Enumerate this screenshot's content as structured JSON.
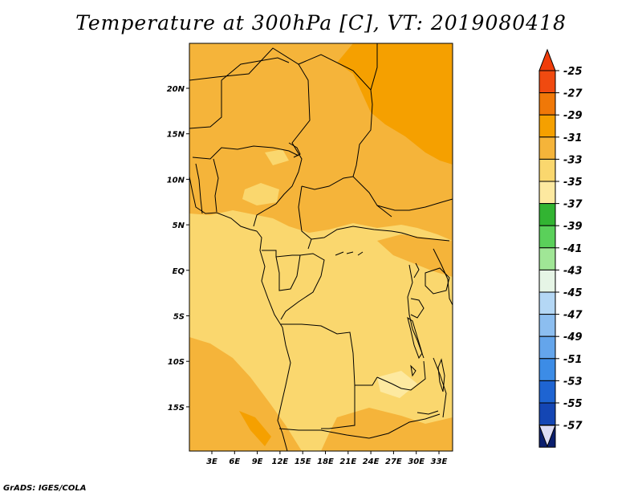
{
  "title": "Temperature at 300hPa [C], VT: 2019080418",
  "credit": "GrADS: IGES/COLA",
  "map": {
    "region": "Central Africa",
    "lat_ticks": [
      "20N",
      "15N",
      "10N",
      "5N",
      "EQ",
      "5S",
      "10S",
      "15S"
    ],
    "lon_ticks": [
      "3E",
      "6E",
      "9E",
      "12E",
      "15E",
      "18E",
      "21E",
      "24E",
      "27E",
      "30E",
      "33E"
    ]
  },
  "colorbar": {
    "labels": [
      "-25",
      "-27",
      "-29",
      "-31",
      "-33",
      "-35",
      "-37",
      "-39",
      "-41",
      "-43",
      "-45",
      "-47",
      "-49",
      "-51",
      "-53",
      "-55",
      "-57"
    ],
    "colors": [
      "#f04a10",
      "#f07808",
      "#f5a000",
      "#f5b43a",
      "#fad76e",
      "#fde9a0",
      "#32b432",
      "#5ad05a",
      "#a0e696",
      "#e6f5e6",
      "#b4d7f5",
      "#8cbef0",
      "#64a5eb",
      "#3c8ce6",
      "#1e64d2",
      "#1446b4",
      "#0a1e6e"
    ],
    "top_arrow_color": "#f03c0a",
    "bottom_arrow_color": "#dcdcf5"
  },
  "field_colors": {
    "c_27": "#f5a000",
    "c_29": "#f5b43a",
    "c_31": "#fad76e",
    "c_33": "#fde9a0"
  }
}
